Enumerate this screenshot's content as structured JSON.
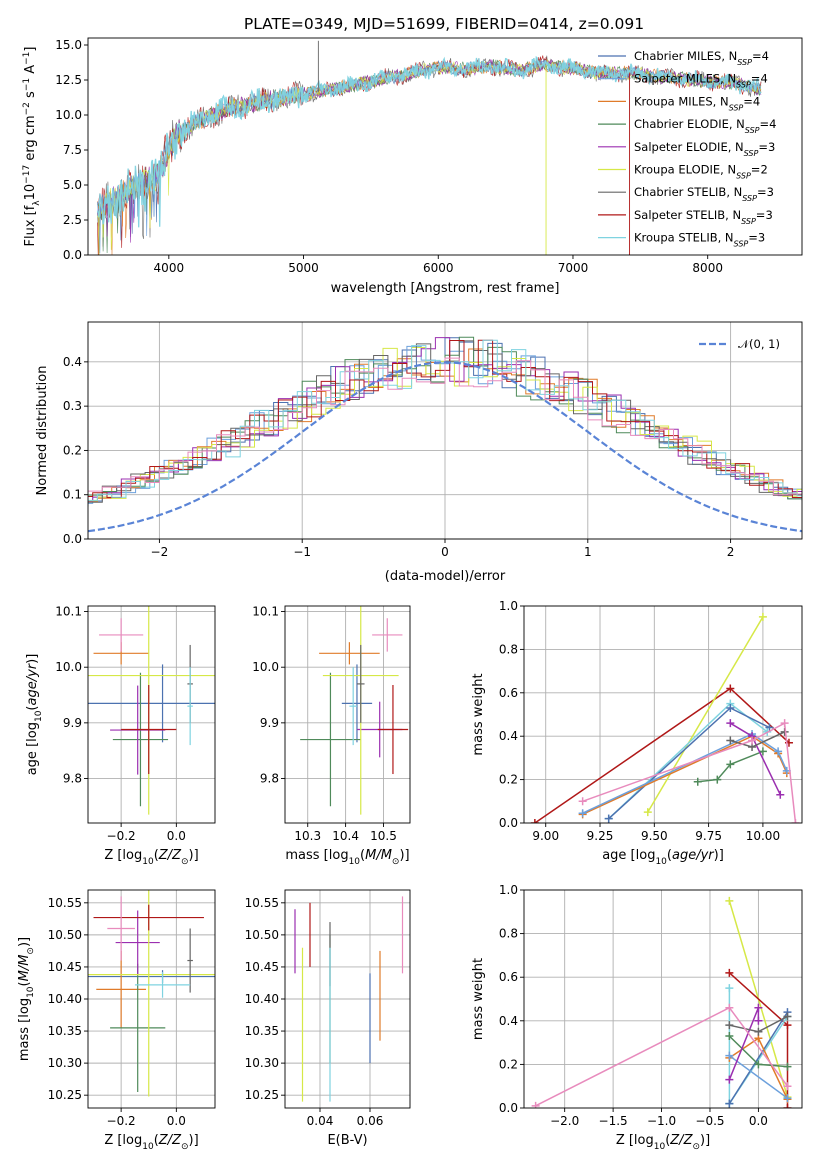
{
  "figure": {
    "title": "PLATE=0349, MJD=51699, FIBERID=0414, z=0.091"
  },
  "colors": {
    "Chabrier MILES": "#4c72b0",
    "Salpeter MILES": "#6ca0dc",
    "Kroupa MILES": "#e07b2a",
    "Chabrier ELODIE": "#4f8a5a",
    "Salpeter ELODIE": "#9b2fb0",
    "Kroupa ELODIE": "#d6e847",
    "Chabrier STELIB": "#666666",
    "Salpeter STELIB": "#b01818",
    "Kroupa STELIB": "#7fd3e0",
    "Extra": "#e88bbd"
  },
  "legend_spectrum": [
    {
      "name": "Chabrier MILES",
      "nssp": "4"
    },
    {
      "name": "Salpeter MILES",
      "nssp": "4"
    },
    {
      "name": "Kroupa MILES",
      "nssp": "4"
    },
    {
      "name": "Chabrier ELODIE",
      "nssp": "4"
    },
    {
      "name": "Salpeter ELODIE",
      "nssp": "3"
    },
    {
      "name": "Kroupa ELODIE",
      "nssp": "2"
    },
    {
      "name": "Chabrier STELIB",
      "nssp": "3"
    },
    {
      "name": "Salpeter STELIB",
      "nssp": "3"
    },
    {
      "name": "Kroupa STELIB",
      "nssp": "3"
    }
  ],
  "chart_data": [
    {
      "id": "spectrum",
      "type": "line",
      "xlabel": "wavelength [Angstrom, rest frame]",
      "ylabel": "Flux [f",
      "xlim": [
        3400,
        8700
      ],
      "ylim": [
        0,
        15.5
      ],
      "xticks": [
        4000,
        5000,
        6000,
        7000,
        8000
      ],
      "yticks": [
        0.0,
        2.5,
        5.0,
        7.5,
        10.0,
        12.5,
        15.0
      ],
      "grid": false,
      "legend": "right",
      "continuum": {
        "x": [
          3470,
          3600,
          3750,
          3900,
          3950,
          4050,
          4200,
          4400,
          4600,
          4800,
          5000,
          5200,
          5400,
          5600,
          5800,
          6000,
          6200,
          6400,
          6600,
          6800,
          7000,
          7200,
          7400,
          7600,
          7800,
          8000,
          8200,
          8400
        ],
        "y": [
          3.2,
          4.0,
          5.0,
          5.5,
          6.5,
          8.5,
          9.5,
          10.3,
          10.8,
          11.2,
          11.5,
          11.8,
          12.2,
          12.6,
          13.0,
          13.4,
          13.3,
          13.5,
          13.2,
          13.6,
          13.3,
          13.0,
          13.0,
          12.8,
          12.6,
          12.4,
          12.3,
          11.8
        ]
      },
      "spikes": [
        {
          "x": 5110,
          "y": 15.3,
          "series": "Chabrier STELIB"
        },
        {
          "x": 6800,
          "y": 0.0,
          "series": "Kroupa ELODIE"
        },
        {
          "x": 7420,
          "y": 0.0,
          "series": "Salpeter STELIB"
        }
      ]
    },
    {
      "id": "residuals",
      "type": "histogram",
      "xlabel": "(data-model)/error",
      "ylabel": "Normed distribution",
      "xlim": [
        -2.5,
        2.5
      ],
      "ylim": [
        0,
        0.49
      ],
      "xticks": [
        -2,
        -1,
        0,
        1,
        2
      ],
      "yticks": [
        0.0,
        0.1,
        0.2,
        0.3,
        0.4
      ],
      "grid": true,
      "legend": "top-right",
      "reference_label": "𝒩(0, 1)",
      "reference": "normal",
      "bin_width": 0.1,
      "base": [
        0.025,
        0.03,
        0.035,
        0.04,
        0.045,
        0.05,
        0.058,
        0.065,
        0.075,
        0.085,
        0.095,
        0.105,
        0.12,
        0.13,
        0.145,
        0.16,
        0.17,
        0.185,
        0.2,
        0.215,
        0.235,
        0.255,
        0.27,
        0.285,
        0.3,
        0.315,
        0.33,
        0.345,
        0.36,
        0.37,
        0.38,
        0.39,
        0.395,
        0.4,
        0.4,
        0.4,
        0.4,
        0.395,
        0.39,
        0.385,
        0.375,
        0.365,
        0.35,
        0.335,
        0.32,
        0.305,
        0.29,
        0.275,
        0.26,
        0.245,
        0.23,
        0.21,
        0.195,
        0.18,
        0.165,
        0.15,
        0.135,
        0.12,
        0.11,
        0.1,
        0.09,
        0.08,
        0.07,
        0.06,
        0.05,
        0.045,
        0.04,
        0.035,
        0.03,
        0.028
      ]
    },
    {
      "id": "age_vs_Z",
      "type": "errorbar",
      "xlabel": "Z [log",
      "ylabel": "age  [log",
      "xlim": [
        -0.32,
        0.14
      ],
      "ylim": [
        9.72,
        10.11
      ],
      "xticks": [
        -0.2,
        0.0
      ],
      "yticks": [
        9.8,
        9.9,
        10.0,
        10.1
      ],
      "grid": true,
      "points": [
        {
          "series": "Chabrier MILES",
          "x": -0.05,
          "xerr": 0.27,
          "y": 9.935,
          "yerr": 0.07
        },
        {
          "series": "Kroupa MILES",
          "x": -0.2,
          "xerr": 0.1,
          "y": 10.025,
          "yerr": 0.02
        },
        {
          "series": "Chabrier ELODIE",
          "x": -0.13,
          "xerr": 0.1,
          "y": 9.87,
          "yerr": 0.12
        },
        {
          "series": "Salpeter ELODIE",
          "x": -0.14,
          "xerr": 0.1,
          "y": 9.887,
          "yerr": 0.08
        },
        {
          "series": "Kroupa ELODIE",
          "x": -0.1,
          "xerr": 0.32,
          "y": 9.985,
          "yerr": 0.25
        },
        {
          "series": "Chabrier STELIB",
          "x": 0.05,
          "xerr": 0.01,
          "y": 9.97,
          "yerr": 0.07
        },
        {
          "series": "Salpeter STELIB",
          "x": -0.1,
          "xerr": 0.1,
          "y": 9.888,
          "yerr": 0.08
        },
        {
          "series": "Kroupa STELIB",
          "x": 0.05,
          "xerr": 0.01,
          "y": 9.93,
          "yerr": 0.07
        },
        {
          "series": "Extra",
          "x": -0.2,
          "xerr": 0.08,
          "y": 10.058,
          "yerr": 0.03
        }
      ]
    },
    {
      "id": "age_vs_mass",
      "type": "errorbar",
      "xlabel": "mass [log",
      "ylabel": "",
      "xlim": [
        10.24,
        10.57
      ],
      "ylim": [
        9.72,
        10.11
      ],
      "xticks": [
        10.3,
        10.4,
        10.5
      ],
      "yticks": [
        9.8,
        9.9,
        10.0,
        10.1
      ],
      "grid": true,
      "points": [
        {
          "series": "Chabrier MILES",
          "x": 10.43,
          "xerr": 0.04,
          "y": 9.935,
          "yerr": 0.07
        },
        {
          "series": "Kroupa MILES",
          "x": 10.41,
          "xerr": 0.08,
          "y": 10.025,
          "yerr": 0.02
        },
        {
          "series": "Chabrier ELODIE",
          "x": 10.36,
          "xerr": 0.08,
          "y": 9.87,
          "yerr": 0.12
        },
        {
          "series": "Salpeter ELODIE",
          "x": 10.49,
          "xerr": 0.06,
          "y": 9.888,
          "yerr": 0.05
        },
        {
          "series": "Kroupa ELODIE",
          "x": 10.44,
          "xerr": 0.1,
          "y": 9.985,
          "yerr": 0.25
        },
        {
          "series": "Chabrier STELIB",
          "x": 10.44,
          "xerr": 0.01,
          "y": 9.97,
          "yerr": 0.07
        },
        {
          "series": "Salpeter STELIB",
          "x": 10.525,
          "xerr": 0.04,
          "y": 9.888,
          "yerr": 0.08
        },
        {
          "series": "Kroupa STELIB",
          "x": 10.42,
          "xerr": 0.01,
          "y": 9.93,
          "yerr": 0.07
        },
        {
          "series": "Extra",
          "x": 10.51,
          "xerr": 0.04,
          "y": 10.058,
          "yerr": 0.03
        }
      ]
    },
    {
      "id": "mass_weight_vs_age",
      "type": "line",
      "xlabel": "age  [log",
      "ylabel": "mass weight",
      "xlim": [
        8.9,
        10.18
      ],
      "ylim": [
        0,
        1.0
      ],
      "xticks": [
        9.0,
        9.25,
        9.5,
        9.75,
        10.0
      ],
      "yticks": [
        0.0,
        0.2,
        0.4,
        0.6,
        0.8,
        1.0
      ],
      "grid": true,
      "series": [
        {
          "name": "Salpeter STELIB",
          "x": [
            8.95,
            9.85,
            10.12
          ],
          "y": [
            0.0,
            0.62,
            0.37
          ]
        },
        {
          "name": "Kroupa ELODIE",
          "x": [
            9.47,
            10.0
          ],
          "y": [
            0.05,
            0.95
          ]
        },
        {
          "name": "Kroupa STELIB",
          "x": [
            9.29,
            9.85,
            10.02
          ],
          "y": [
            0.02,
            0.55,
            0.42
          ]
        },
        {
          "name": "Chabrier MILES",
          "x": [
            9.29,
            9.85,
            10.03
          ],
          "y": [
            0.02,
            0.53,
            0.44
          ]
        },
        {
          "name": "Kroupa MILES",
          "x": [
            9.17,
            9.95,
            10.07,
            10.11
          ],
          "y": [
            0.04,
            0.4,
            0.32,
            0.23
          ]
        },
        {
          "name": "Salpeter MILES",
          "x": [
            9.17,
            9.95,
            10.07,
            10.11
          ],
          "y": [
            0.045,
            0.41,
            0.33,
            0.24
          ]
        },
        {
          "name": "Chabrier ELODIE",
          "x": [
            9.7,
            9.79,
            9.85,
            10.0
          ],
          "y": [
            0.19,
            0.2,
            0.27,
            0.33
          ]
        },
        {
          "name": "Salpeter ELODIE",
          "x": [
            9.85,
            9.95,
            10.08
          ],
          "y": [
            0.46,
            0.4,
            0.13
          ]
        },
        {
          "name": "Chabrier STELIB",
          "x": [
            9.85,
            9.95,
            10.1
          ],
          "y": [
            0.38,
            0.35,
            0.42
          ]
        },
        {
          "name": "Extra",
          "x": [
            9.17,
            9.95,
            10.1,
            10.15
          ],
          "y": [
            0.1,
            0.38,
            0.46,
            0.0
          ]
        }
      ]
    },
    {
      "id": "mass_vs_Z",
      "type": "errorbar",
      "xlabel": "Z [log",
      "ylabel": "mass [log",
      "xlim": [
        -0.32,
        0.14
      ],
      "ylim": [
        10.23,
        10.57
      ],
      "xticks": [
        -0.2,
        0.0
      ],
      "yticks": [
        10.25,
        10.3,
        10.35,
        10.4,
        10.45,
        10.5,
        10.55
      ],
      "grid": true,
      "points": [
        {
          "series": "Chabrier MILES",
          "x": -0.05,
          "xerr": 0.27,
          "y": 10.435,
          "yerr": 0.01
        },
        {
          "series": "Kroupa MILES",
          "x": -0.2,
          "xerr": 0.09,
          "y": 10.415,
          "yerr": 0.06
        },
        {
          "series": "Chabrier ELODIE",
          "x": -0.14,
          "xerr": 0.1,
          "y": 10.355,
          "yerr": 0.1
        },
        {
          "series": "Salpeter ELODIE",
          "x": -0.14,
          "xerr": 0.08,
          "y": 10.488,
          "yerr": 0.05
        },
        {
          "series": "Kroupa ELODIE",
          "x": -0.1,
          "xerr": 0.32,
          "y": 10.438,
          "yerr": 0.19
        },
        {
          "series": "Chabrier STELIB",
          "x": 0.05,
          "xerr": 0.01,
          "y": 10.46,
          "yerr": 0.05
        },
        {
          "series": "Salpeter STELIB",
          "x": -0.1,
          "xerr": 0.2,
          "y": 10.527,
          "yerr": 0.02
        },
        {
          "series": "Kroupa STELIB",
          "x": -0.05,
          "xerr": 0.1,
          "y": 10.422,
          "yerr": 0.02
        },
        {
          "series": "Extra",
          "x": -0.2,
          "xerr": 0.05,
          "y": 10.51,
          "yerr": 0.05
        }
      ]
    },
    {
      "id": "mass_vs_ebv",
      "type": "errorbar",
      "xlabel": "E(B-V)",
      "ylabel": "",
      "xlim": [
        0.026,
        0.076
      ],
      "ylim": [
        10.23,
        10.57
      ],
      "xticks": [
        0.04,
        0.06
      ],
      "yticks": [
        10.25,
        10.3,
        10.35,
        10.4,
        10.45,
        10.5,
        10.55
      ],
      "grid": true,
      "points": [
        {
          "series": "Chabrier MILES",
          "x": 0.06,
          "xerr": 0.0,
          "y": 10.37,
          "yerr": 0.07
        },
        {
          "series": "Kroupa MILES",
          "x": 0.064,
          "xerr": 0.0,
          "y": 10.405,
          "yerr": 0.07
        },
        {
          "series": "Chabrier ELODIE",
          "x": 0.044,
          "xerr": 0.0,
          "y": 10.4,
          "yerr": 0.1
        },
        {
          "series": "Salpeter ELODIE",
          "x": 0.03,
          "xerr": 0.0,
          "y": 10.49,
          "yerr": 0.05
        },
        {
          "series": "Kroupa ELODIE",
          "x": 0.033,
          "xerr": 0.0,
          "y": 10.36,
          "yerr": 0.12
        },
        {
          "series": "Chabrier STELIB",
          "x": 0.044,
          "xerr": 0.0,
          "y": 10.47,
          "yerr": 0.05
        },
        {
          "series": "Salpeter STELIB",
          "x": 0.036,
          "xerr": 0.0,
          "y": 10.5,
          "yerr": 0.05
        },
        {
          "series": "Kroupa STELIB",
          "x": 0.044,
          "xerr": 0.0,
          "y": 10.36,
          "yerr": 0.12
        },
        {
          "series": "Extra",
          "x": 0.073,
          "xerr": 0.0,
          "y": 10.5,
          "yerr": 0.06
        }
      ]
    },
    {
      "id": "mass_weight_vs_Z",
      "type": "line",
      "xlabel": "Z [log",
      "ylabel": "mass weight",
      "xlim": [
        -2.42,
        0.45
      ],
      "ylim": [
        0,
        1.0
      ],
      "xticks": [
        -2.0,
        -1.5,
        -1.0,
        -0.5,
        0.0
      ],
      "yticks": [
        0.0,
        0.2,
        0.4,
        0.6,
        0.8,
        1.0
      ],
      "grid": true,
      "series": [
        {
          "name": "Kroupa ELODIE",
          "x": [
            -0.3,
            0.3
          ],
          "y": [
            0.95,
            0.05
          ]
        },
        {
          "name": "Salpeter STELIB",
          "x": [
            -0.3,
            0.3,
            0.3
          ],
          "y": [
            0.62,
            0.38,
            0.0
          ]
        },
        {
          "name": "Kroupa STELIB",
          "x": [
            -0.3,
            -0.3,
            0.3,
            -0.3
          ],
          "y": [
            0.55,
            0.02,
            0.42,
            0.02
          ]
        },
        {
          "name": "Chabrier MILES",
          "x": [
            -0.3,
            0.3
          ],
          "y": [
            0.02,
            0.44
          ]
        },
        {
          "name": "Kroupa MILES",
          "x": [
            -0.3,
            0.0,
            0.3
          ],
          "y": [
            0.23,
            0.32,
            0.04
          ]
        },
        {
          "name": "Salpeter MILES",
          "x": [
            -0.3,
            0.3
          ],
          "y": [
            0.24,
            0.045
          ]
        },
        {
          "name": "Chabrier ELODIE",
          "x": [
            -0.3,
            0.0,
            0.3
          ],
          "y": [
            0.33,
            0.2,
            0.19
          ]
        },
        {
          "name": "Salpeter ELODIE",
          "x": [
            -0.3,
            0.0,
            0.0
          ],
          "y": [
            0.13,
            0.46,
            0.4
          ]
        },
        {
          "name": "Chabrier STELIB",
          "x": [
            -0.3,
            0.0,
            0.3
          ],
          "y": [
            0.38,
            0.35,
            0.42
          ]
        },
        {
          "name": "Extra",
          "x": [
            -2.3,
            -0.3,
            0.3
          ],
          "y": [
            0.01,
            0.46,
            0.1
          ]
        }
      ]
    }
  ]
}
